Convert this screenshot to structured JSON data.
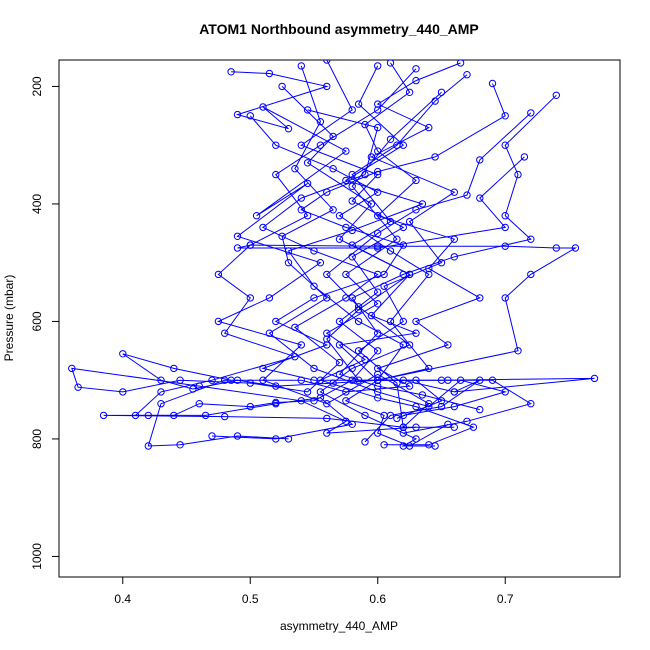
{
  "chart_data": {
    "type": "line",
    "title": "ATOM1 Northbound asymmetry_440_AMP",
    "xlabel": "asymmetry_440_AMP",
    "ylabel": "Pressure (mbar)",
    "xlim": [
      0.35,
      0.79
    ],
    "ylim": [
      1035,
      155
    ],
    "y_reversed": true,
    "x_ticks": [
      0.4,
      0.5,
      0.6,
      0.7
    ],
    "x_tick_labels": [
      "0.4",
      "0.5",
      "0.6",
      "0.7"
    ],
    "y_ticks": [
      200,
      400,
      600,
      800,
      1000
    ],
    "y_tick_labels": [
      "200",
      "400",
      "600",
      "800",
      "1000"
    ],
    "grid": false,
    "legend": "none",
    "series_color": "#0000ff",
    "marker": "open-circle",
    "series": [
      {
        "points": [
          [
            0.485,
            175
          ],
          [
            0.515,
            178
          ],
          [
            0.56,
            200
          ],
          [
            0.49,
            248
          ],
          [
            0.53,
            272
          ],
          [
            0.51,
            235
          ],
          [
            0.575,
            310
          ],
          [
            0.505,
            420
          ],
          [
            0.545,
            365
          ],
          [
            0.49,
            455
          ],
          [
            0.555,
            500
          ],
          [
            0.515,
            560
          ],
          [
            0.475,
            600
          ],
          [
            0.54,
            640
          ],
          [
            0.51,
            700
          ],
          [
            0.56,
            740
          ],
          [
            0.6,
            690
          ],
          [
            0.64,
            740
          ],
          [
            0.62,
            780
          ],
          [
            0.615,
            705
          ],
          [
            0.585,
            650
          ],
          [
            0.62,
            600
          ],
          [
            0.605,
            540
          ],
          [
            0.65,
            500
          ],
          [
            0.625,
            430
          ],
          [
            0.66,
            380
          ],
          [
            0.595,
            320
          ],
          [
            0.64,
            270
          ],
          [
            0.6,
            230
          ],
          [
            0.63,
            190
          ],
          [
            0.665,
            160
          ]
        ]
      },
      {
        "points": [
          [
            0.6,
            165
          ],
          [
            0.585,
            230
          ],
          [
            0.62,
            300
          ],
          [
            0.575,
            360
          ],
          [
            0.635,
            400
          ],
          [
            0.58,
            445
          ],
          [
            0.53,
            480
          ],
          [
            0.55,
            540
          ],
          [
            0.585,
            600
          ],
          [
            0.62,
            640
          ],
          [
            0.6,
            700
          ],
          [
            0.575,
            735
          ],
          [
            0.605,
            760
          ],
          [
            0.6,
            790
          ],
          [
            0.625,
            812
          ],
          [
            0.655,
            775
          ]
        ]
      },
      {
        "points": [
          [
            0.63,
            170
          ],
          [
            0.6,
            240
          ],
          [
            0.555,
            300
          ],
          [
            0.52,
            350
          ],
          [
            0.545,
            420
          ],
          [
            0.5,
            470
          ],
          [
            0.475,
            520
          ],
          [
            0.5,
            560
          ],
          [
            0.48,
            620
          ],
          [
            0.535,
            660
          ],
          [
            0.47,
            700
          ],
          [
            0.43,
            720
          ],
          [
            0.41,
            760
          ],
          [
            0.465,
            760
          ],
          [
            0.52,
            740
          ],
          [
            0.555,
            730
          ],
          [
            0.58,
            775
          ],
          [
            0.52,
            800
          ],
          [
            0.47,
            795
          ]
        ]
      },
      {
        "points": [
          [
            0.525,
            200
          ],
          [
            0.565,
            285
          ],
          [
            0.545,
            330
          ],
          [
            0.595,
            400
          ],
          [
            0.57,
            460
          ],
          [
            0.625,
            520
          ],
          [
            0.585,
            580
          ],
          [
            0.56,
            630
          ],
          [
            0.585,
            700
          ],
          [
            0.62,
            700
          ],
          [
            0.66,
            720
          ],
          [
            0.68,
            700
          ],
          [
            0.65,
            745
          ],
          [
            0.61,
            760
          ],
          [
            0.59,
            805
          ]
        ]
      },
      {
        "points": [
          [
            0.545,
            240
          ],
          [
            0.6,
            270
          ],
          [
            0.59,
            350
          ],
          [
            0.54,
            390
          ],
          [
            0.51,
            440
          ],
          [
            0.55,
            480
          ],
          [
            0.6,
            520
          ],
          [
            0.575,
            560
          ],
          [
            0.535,
            610
          ],
          [
            0.57,
            670
          ],
          [
            0.545,
            720
          ],
          [
            0.5,
            705
          ],
          [
            0.445,
            700
          ],
          [
            0.4,
            720
          ],
          [
            0.365,
            712
          ],
          [
            0.36,
            680
          ],
          [
            0.46,
            710
          ],
          [
            0.54,
            735
          ],
          [
            0.575,
            770
          ],
          [
            0.56,
            790
          ],
          [
            0.63,
            780
          ]
        ]
      },
      {
        "points": [
          [
            0.69,
            195
          ],
          [
            0.7,
            250
          ],
          [
            0.645,
            320
          ],
          [
            0.6,
            345
          ],
          [
            0.56,
            380
          ],
          [
            0.54,
            410
          ],
          [
            0.575,
            440
          ],
          [
            0.62,
            470
          ],
          [
            0.605,
            520
          ],
          [
            0.55,
            560
          ],
          [
            0.52,
            600
          ],
          [
            0.56,
            640
          ],
          [
            0.51,
            680
          ],
          [
            0.55,
            700
          ],
          [
            0.6,
            700
          ],
          [
            0.655,
            700
          ],
          [
            0.69,
            700
          ],
          [
            0.72,
            740
          ],
          [
            0.67,
            770
          ],
          [
            0.62,
            790
          ]
        ]
      },
      {
        "points": [
          [
            0.56,
            155
          ],
          [
            0.58,
            240
          ],
          [
            0.54,
            300
          ],
          [
            0.6,
            350
          ],
          [
            0.58,
            395
          ],
          [
            0.62,
            440
          ],
          [
            0.58,
            490
          ],
          [
            0.6,
            550
          ],
          [
            0.57,
            600
          ],
          [
            0.6,
            650
          ],
          [
            0.58,
            700
          ],
          [
            0.55,
            735
          ],
          [
            0.52,
            738
          ],
          [
            0.5,
            745
          ],
          [
            0.46,
            740
          ],
          [
            0.44,
            760
          ],
          [
            0.42,
            760
          ],
          [
            0.385,
            760
          ],
          [
            0.48,
            762
          ],
          [
            0.56,
            765
          ],
          [
            0.62,
            780
          ],
          [
            0.66,
            780
          ]
        ]
      },
      {
        "points": [
          [
            0.61,
            160
          ],
          [
            0.625,
            210
          ],
          [
            0.59,
            265
          ],
          [
            0.6,
            310
          ],
          [
            0.63,
            360
          ],
          [
            0.6,
            420
          ],
          [
            0.66,
            460
          ],
          [
            0.64,
            510
          ],
          [
            0.68,
            560
          ],
          [
            0.63,
            600
          ],
          [
            0.655,
            640
          ],
          [
            0.6,
            680
          ],
          [
            0.625,
            710
          ],
          [
            0.575,
            720
          ],
          [
            0.54,
            700
          ],
          [
            0.48,
            700
          ],
          [
            0.43,
            740
          ],
          [
            0.42,
            812
          ],
          [
            0.445,
            810
          ],
          [
            0.49,
            795
          ],
          [
            0.53,
            800
          ]
        ]
      },
      {
        "points": [
          [
            0.54,
            165
          ],
          [
            0.555,
            260
          ],
          [
            0.535,
            340
          ],
          [
            0.565,
            410
          ],
          [
            0.525,
            455
          ],
          [
            0.53,
            500
          ],
          [
            0.56,
            560
          ],
          [
            0.515,
            620
          ],
          [
            0.55,
            680
          ],
          [
            0.6,
            720
          ],
          [
            0.64,
            745
          ],
          [
            0.665,
            700
          ],
          [
            0.7,
            720
          ],
          [
            0.66,
            745
          ],
          [
            0.62,
            760
          ]
        ]
      },
      {
        "points": [
          [
            0.65,
            210
          ],
          [
            0.61,
            290
          ],
          [
            0.58,
            370
          ],
          [
            0.615,
            460
          ],
          [
            0.575,
            520
          ],
          [
            0.6,
            570
          ],
          [
            0.56,
            620
          ],
          [
            0.59,
            665
          ],
          [
            0.555,
            700
          ],
          [
            0.6,
            730
          ],
          [
            0.63,
            745
          ],
          [
            0.675,
            780
          ],
          [
            0.64,
            810
          ],
          [
            0.605,
            810
          ]
        ]
      },
      {
        "points": [
          [
            0.5,
            250
          ],
          [
            0.52,
            300
          ],
          [
            0.565,
            340
          ],
          [
            0.6,
            380
          ],
          [
            0.57,
            420
          ],
          [
            0.61,
            480
          ],
          [
            0.64,
            520
          ],
          [
            0.61,
            600
          ],
          [
            0.64,
            680
          ],
          [
            0.6,
            700
          ],
          [
            0.565,
            705
          ],
          [
            0.52,
            710
          ],
          [
            0.49,
            700
          ],
          [
            0.455,
            715
          ],
          [
            0.43,
            700
          ],
          [
            0.4,
            655
          ],
          [
            0.44,
            680
          ],
          [
            0.485,
            700
          ]
        ]
      },
      {
        "points": [
          [
            0.67,
            180
          ],
          [
            0.645,
            225
          ],
          [
            0.615,
            300
          ],
          [
            0.58,
            350
          ],
          [
            0.61,
            430
          ],
          [
            0.58,
            470
          ],
          [
            0.625,
            520
          ],
          [
            0.595,
            590
          ],
          [
            0.63,
            620
          ],
          [
            0.57,
            640
          ],
          [
            0.6,
            700
          ],
          [
            0.63,
            700
          ],
          [
            0.65,
            735
          ],
          [
            0.615,
            765
          ]
        ]
      },
      {
        "points": [
          [
            0.74,
            215
          ],
          [
            0.7,
            300
          ],
          [
            0.71,
            350
          ],
          [
            0.7,
            420
          ],
          [
            0.72,
            460
          ],
          [
            0.66,
            490
          ],
          [
            0.62,
            520
          ],
          [
            0.58,
            560
          ],
          [
            0.6,
            620
          ],
          [
            0.57,
            690
          ],
          [
            0.6,
            710
          ],
          [
            0.635,
            725
          ],
          [
            0.68,
            750
          ]
        ]
      },
      {
        "points": [
          [
            0.72,
            245
          ],
          [
            0.68,
            325
          ],
          [
            0.67,
            385
          ],
          [
            0.63,
            410
          ],
          [
            0.6,
            450
          ],
          [
            0.56,
            520
          ],
          [
            0.585,
            575
          ],
          [
            0.625,
            640
          ],
          [
            0.58,
            680
          ],
          [
            0.555,
            720
          ],
          [
            0.59,
            760
          ],
          [
            0.63,
            800
          ],
          [
            0.62,
            812
          ],
          [
            0.645,
            812
          ]
        ]
      },
      {
        "points": [
          [
            0.715,
            320
          ],
          [
            0.68,
            390
          ],
          [
            0.7,
            440
          ],
          [
            0.6,
            475
          ],
          [
            0.49,
            475
          ],
          [
            0.5,
            470
          ],
          [
            0.6,
            472
          ],
          [
            0.7,
            472
          ],
          [
            0.74,
            475
          ],
          [
            0.755,
            475
          ],
          [
            0.72,
            520
          ],
          [
            0.7,
            560
          ],
          [
            0.71,
            650
          ],
          [
            0.6,
            700
          ],
          [
            0.65,
            700
          ],
          [
            0.77,
            697
          ],
          [
            0.66,
            720
          ]
        ]
      }
    ]
  }
}
